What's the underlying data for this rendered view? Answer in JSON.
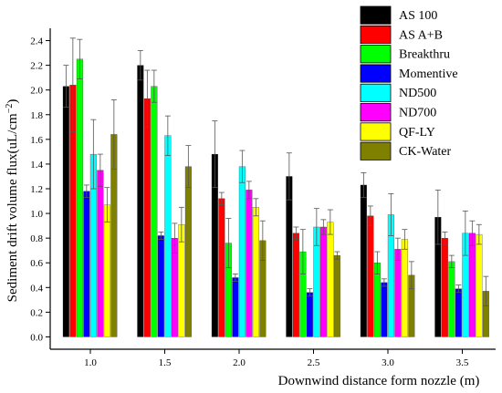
{
  "chart_data": {
    "type": "bar",
    "title": "",
    "xlabel": "Downwind distance form nozzle (m)",
    "ylabel": "Sediment drift volume flux(uL/cm",
    "ylabel_sup": "−2",
    "ylabel_close": ")",
    "categories": [
      "1.0",
      "1.5",
      "2.0",
      "2.5",
      "3.0",
      "3.5"
    ],
    "ylim": [
      -0.1,
      2.5
    ],
    "yticks": [
      "0.0",
      "0.2",
      "0.4",
      "0.6",
      "0.8",
      "1.0",
      "1.2",
      "1.4",
      "1.6",
      "1.8",
      "2.0",
      "2.2",
      "2.4"
    ],
    "legend_position": "top-right",
    "grid": false,
    "series": [
      {
        "name": "AS 100",
        "color": "#000000",
        "values": [
          2.03,
          2.2,
          1.48,
          1.3,
          1.23,
          0.97
        ],
        "errors": [
          0.17,
          0.12,
          0.27,
          0.19,
          0.1,
          0.22
        ]
      },
      {
        "name": "AS A+B",
        "color": "#ff0000",
        "values": [
          2.04,
          1.93,
          1.12,
          0.84,
          0.98,
          0.8
        ],
        "errors": [
          0.38,
          0.23,
          0.05,
          0.05,
          0.08,
          0.05
        ]
      },
      {
        "name": "Breakthru",
        "color": "#00ff00",
        "values": [
          2.25,
          2.03,
          0.76,
          0.69,
          0.6,
          0.61
        ],
        "errors": [
          0.16,
          0.13,
          0.2,
          0.18,
          0.09,
          0.05
        ]
      },
      {
        "name": "Momentive",
        "color": "#0000ff",
        "values": [
          1.18,
          0.82,
          0.48,
          0.36,
          0.44,
          0.39
        ],
        "errors": [
          0.05,
          0.03,
          0.03,
          0.03,
          0.03,
          0.03
        ]
      },
      {
        "name": "ND500",
        "color": "#00ffff",
        "values": [
          1.48,
          1.63,
          1.38,
          0.89,
          0.99,
          0.84
        ],
        "errors": [
          0.28,
          0.16,
          0.13,
          0.15,
          0.17,
          0.18
        ]
      },
      {
        "name": "ND700",
        "color": "#ff00ff",
        "values": [
          1.35,
          0.8,
          1.19,
          0.89,
          0.71,
          0.84
        ],
        "errors": [
          0.13,
          0.12,
          0.07,
          0.06,
          0.09,
          0.1
        ]
      },
      {
        "name": "QF-LY",
        "color": "#ffff00",
        "values": [
          1.07,
          0.91,
          1.05,
          0.93,
          0.79,
          0.83
        ],
        "errors": [
          0.14,
          0.14,
          0.07,
          0.1,
          0.08,
          0.08
        ]
      },
      {
        "name": "CK-Water",
        "color": "#808000",
        "values": [
          1.64,
          1.38,
          0.78,
          0.66,
          0.5,
          0.37
        ],
        "errors": [
          0.28,
          0.17,
          0.16,
          0.03,
          0.11,
          0.12
        ]
      }
    ]
  }
}
